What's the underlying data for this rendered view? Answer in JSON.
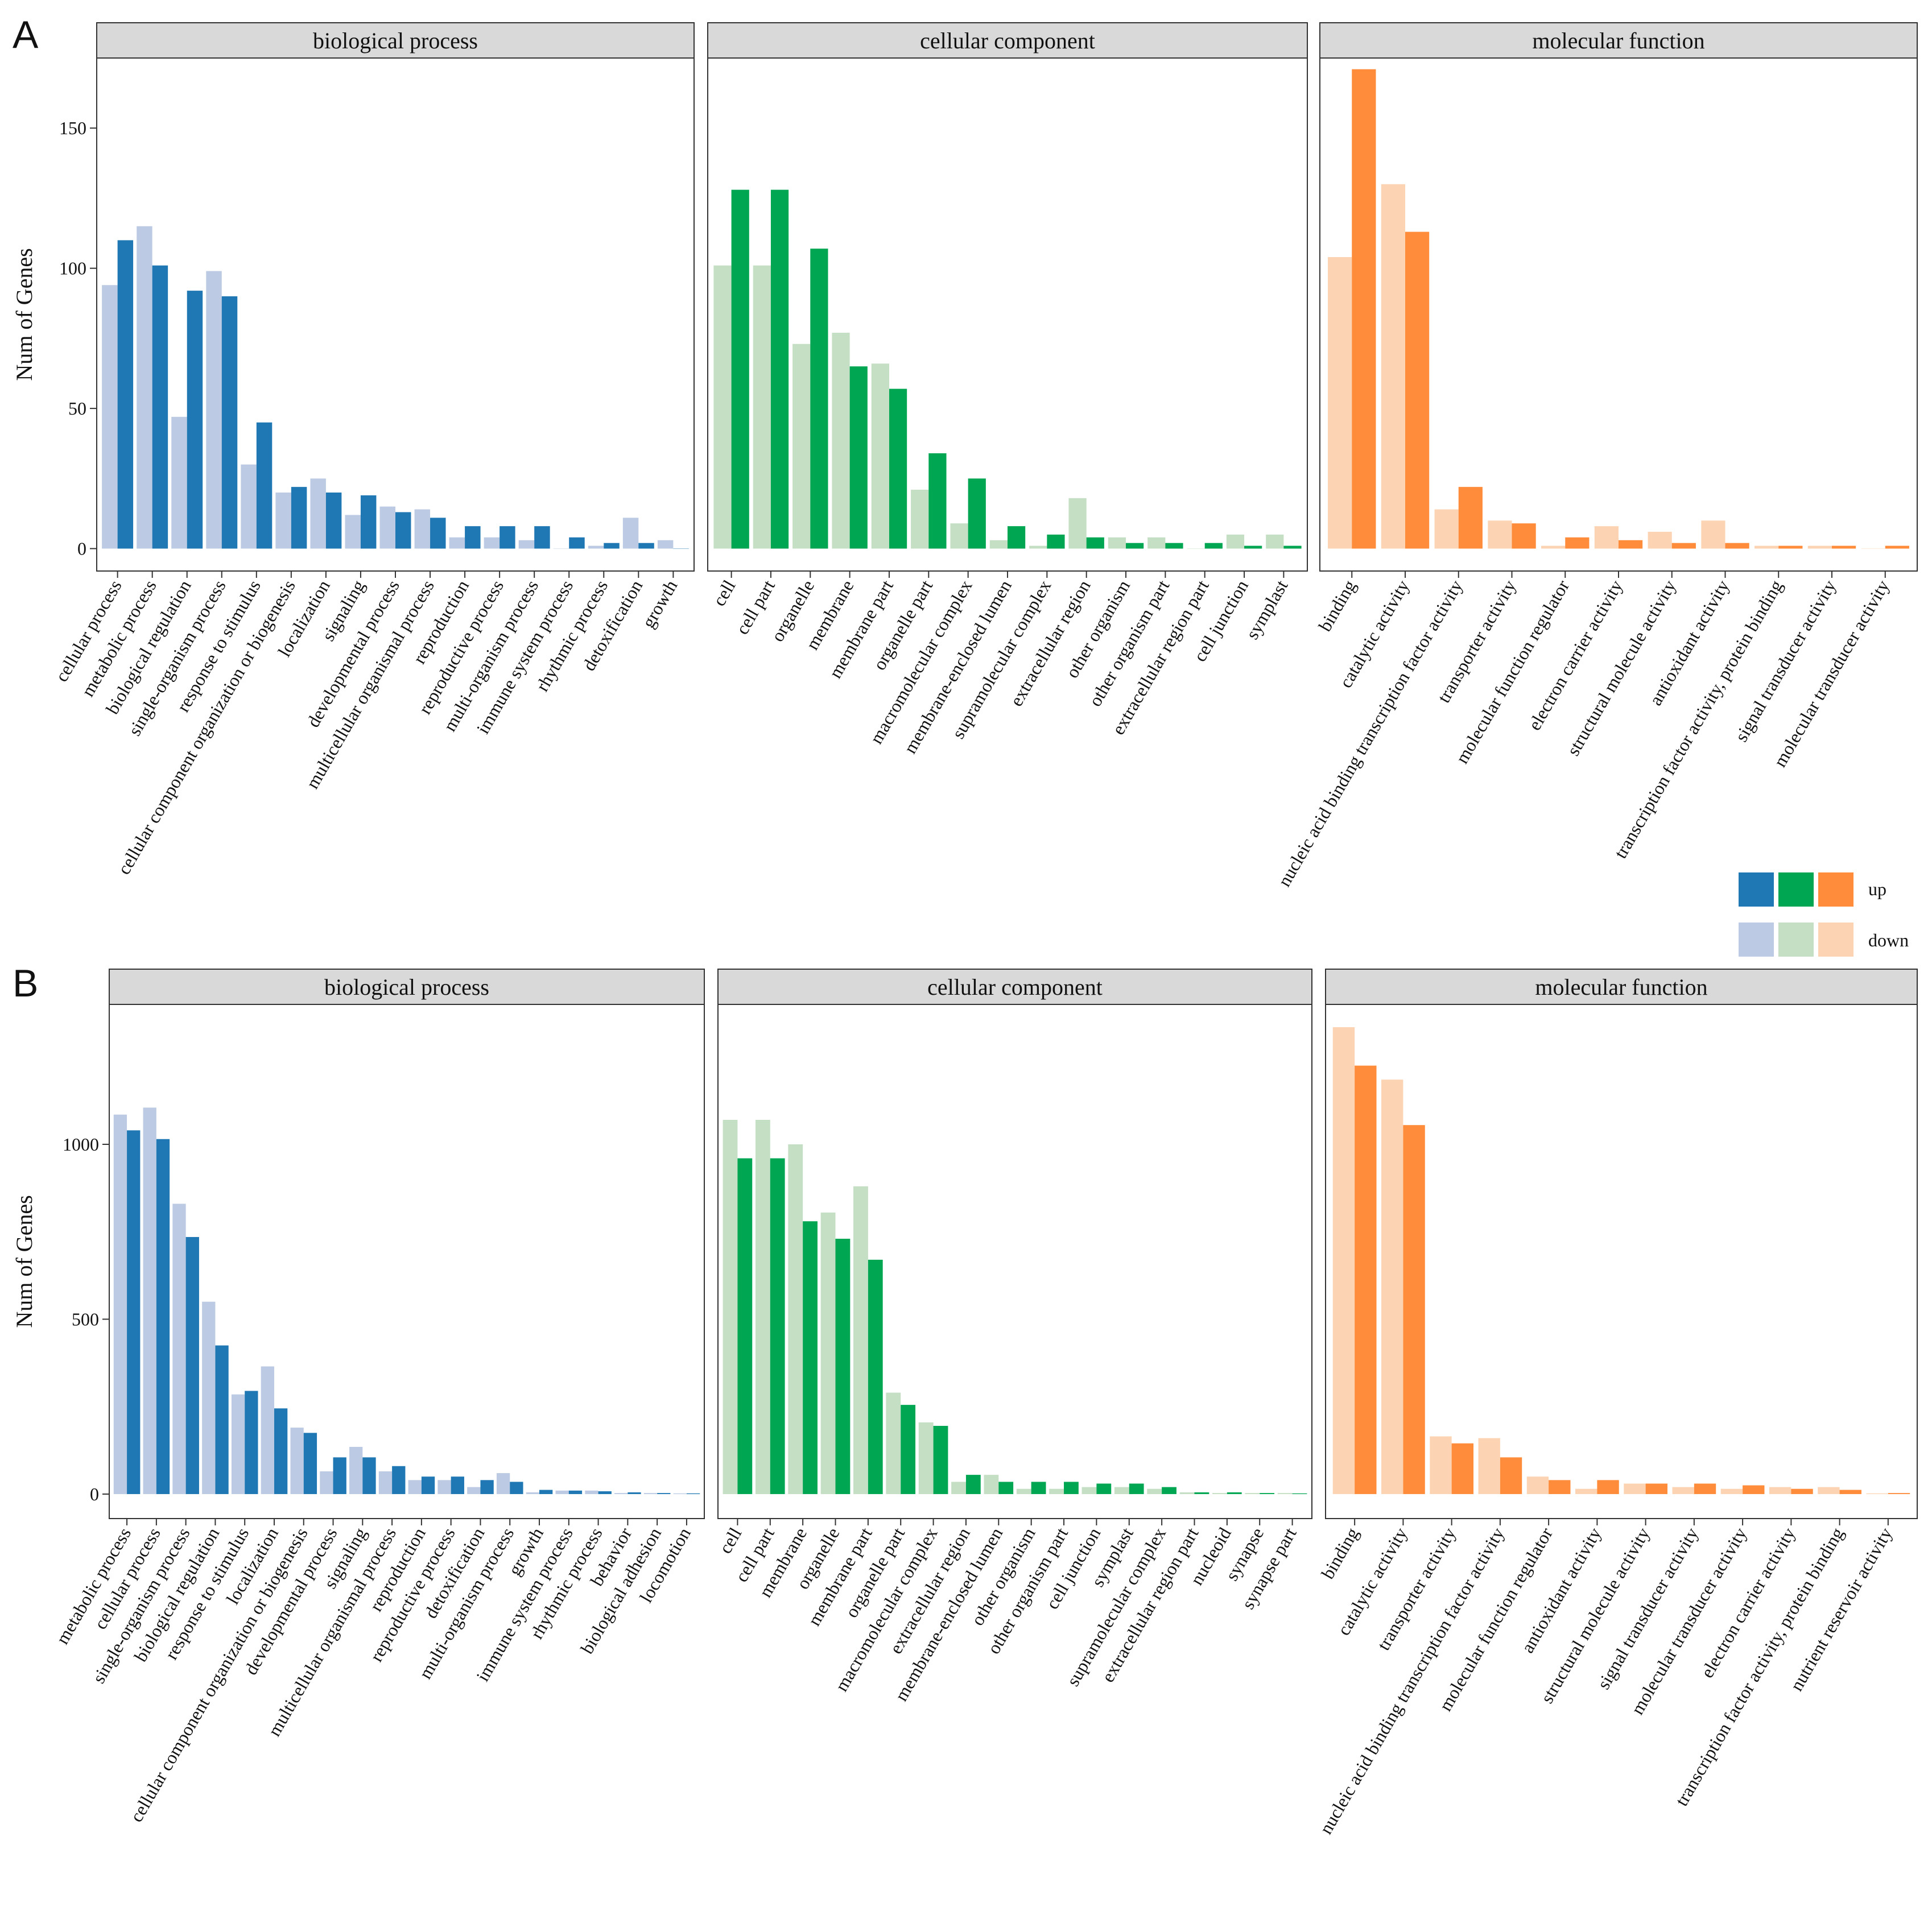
{
  "figure": {
    "legend": {
      "up": "up",
      "down": "down"
    }
  },
  "colors": {
    "biological process": {
      "up": "#1f78b4",
      "down": "#bccbe3"
    },
    "cellular component": {
      "up": "#00a651",
      "down": "#c4dfc3"
    },
    "molecular function": {
      "up": "#ff8c3a",
      "down": "#fdd4b3"
    },
    "strip_fill": "#d9d9d9"
  },
  "chart_data": [
    {
      "type": "bar",
      "panel": "A",
      "ylabel": "Num of Genes",
      "ylim": [
        -8,
        175
      ],
      "yticks": [
        0,
        50,
        100,
        150
      ],
      "series_names": [
        "down",
        "up"
      ],
      "facets": [
        {
          "title": "biological process",
          "categories": [
            "cellular process",
            "metabolic process",
            "biological regulation",
            "single-organism process",
            "response to stimulus",
            "cellular component organization or biogenesis",
            "localization",
            "signaling",
            "developmental process",
            "multicellular organismal process",
            "reproduction",
            "reproductive process",
            "multi-organism process",
            "immune system process",
            "rhythmic process",
            "detoxification",
            "growth"
          ],
          "down": [
            94,
            115,
            47,
            99,
            30,
            20,
            25,
            12,
            15,
            14,
            4,
            4,
            3,
            0,
            1,
            11,
            3
          ],
          "up": [
            110,
            101,
            92,
            90,
            45,
            22,
            20,
            19,
            13,
            11,
            8,
            8,
            8,
            4,
            2,
            2,
            0
          ]
        },
        {
          "title": "cellular component",
          "categories": [
            "cell",
            "cell part",
            "organelle",
            "membrane",
            "membrane part",
            "organelle part",
            "macromolecular complex",
            "membrane-enclosed lumen",
            "supramolecular complex",
            "extracellular region",
            "other organism",
            "other organism part",
            "extracellular region part",
            "cell junction",
            "symplast"
          ],
          "down": [
            101,
            101,
            73,
            77,
            66,
            21,
            9,
            3,
            1,
            18,
            4,
            4,
            0,
            5,
            5
          ],
          "up": [
            128,
            128,
            107,
            65,
            57,
            34,
            25,
            8,
            5,
            4,
            2,
            2,
            2,
            1,
            1
          ]
        },
        {
          "title": "molecular function",
          "categories": [
            "binding",
            "catalytic activity",
            "nucleic acid binding transcription factor activity",
            "transporter activity",
            "molecular function regulator",
            "electron carrier activity",
            "structural molecule activity",
            "antioxidant activity",
            "transcription factor activity, protein binding",
            "signal transducer activity",
            "molecular transducer activity"
          ],
          "down": [
            104,
            130,
            14,
            10,
            1,
            8,
            6,
            10,
            1,
            1,
            0
          ],
          "up": [
            171,
            113,
            22,
            9,
            4,
            3,
            2,
            2,
            1,
            1,
            1
          ]
        }
      ]
    },
    {
      "type": "bar",
      "panel": "B",
      "ylabel": "Num of Genes",
      "ylim": [
        -70,
        1400
      ],
      "yticks": [
        0,
        500,
        1000
      ],
      "series_names": [
        "down",
        "up"
      ],
      "facets": [
        {
          "title": "biological process",
          "categories": [
            "metabolic process",
            "cellular process",
            "single-organism process",
            "biological regulation",
            "response to stimulus",
            "localization",
            "cellular component organization or biogenesis",
            "developmental process",
            "signaling",
            "multicellular organismal process",
            "reproduction",
            "reproductive process",
            "detoxification",
            "multi-organism process",
            "growth",
            "immune system process",
            "rhythmic process",
            "behavior",
            "biological adhesion",
            "locomotion"
          ],
          "down": [
            1085,
            1105,
            830,
            550,
            285,
            365,
            190,
            65,
            135,
            65,
            40,
            40,
            20,
            60,
            5,
            10,
            10,
            3,
            3,
            2
          ],
          "up": [
            1040,
            1015,
            735,
            425,
            295,
            245,
            175,
            105,
            105,
            80,
            50,
            50,
            40,
            35,
            12,
            10,
            8,
            5,
            3,
            2
          ]
        },
        {
          "title": "cellular component",
          "categories": [
            "cell",
            "cell part",
            "membrane",
            "organelle",
            "membrane part",
            "organelle part",
            "macromolecular complex",
            "extracellular region",
            "membrane-enclosed lumen",
            "other organism",
            "other organism part",
            "cell junction",
            "symplast",
            "supramolecular complex",
            "extracellular region part",
            "nucleoid",
            "synapse",
            "synapse part"
          ],
          "down": [
            1070,
            1070,
            1000,
            805,
            880,
            290,
            205,
            35,
            55,
            15,
            15,
            20,
            20,
            15,
            5,
            3,
            3,
            3
          ],
          "up": [
            960,
            960,
            780,
            730,
            670,
            255,
            195,
            55,
            35,
            35,
            35,
            30,
            30,
            20,
            5,
            5,
            3,
            2
          ]
        },
        {
          "title": "molecular function",
          "categories": [
            "binding",
            "catalytic activity",
            "transporter activity",
            "nucleic acid binding transcription factor activity",
            "molecular function regulator",
            "antioxidant activity",
            "structural molecule activity",
            "signal transducer activity",
            "molecular transducer activity",
            "electron carrier activity",
            "transcription factor activity, protein binding",
            "nutrient reservoir activity"
          ],
          "down": [
            1335,
            1185,
            165,
            160,
            50,
            15,
            30,
            20,
            15,
            20,
            20,
            2
          ],
          "up": [
            1225,
            1055,
            145,
            105,
            40,
            40,
            30,
            30,
            25,
            15,
            12,
            3
          ]
        }
      ]
    }
  ]
}
